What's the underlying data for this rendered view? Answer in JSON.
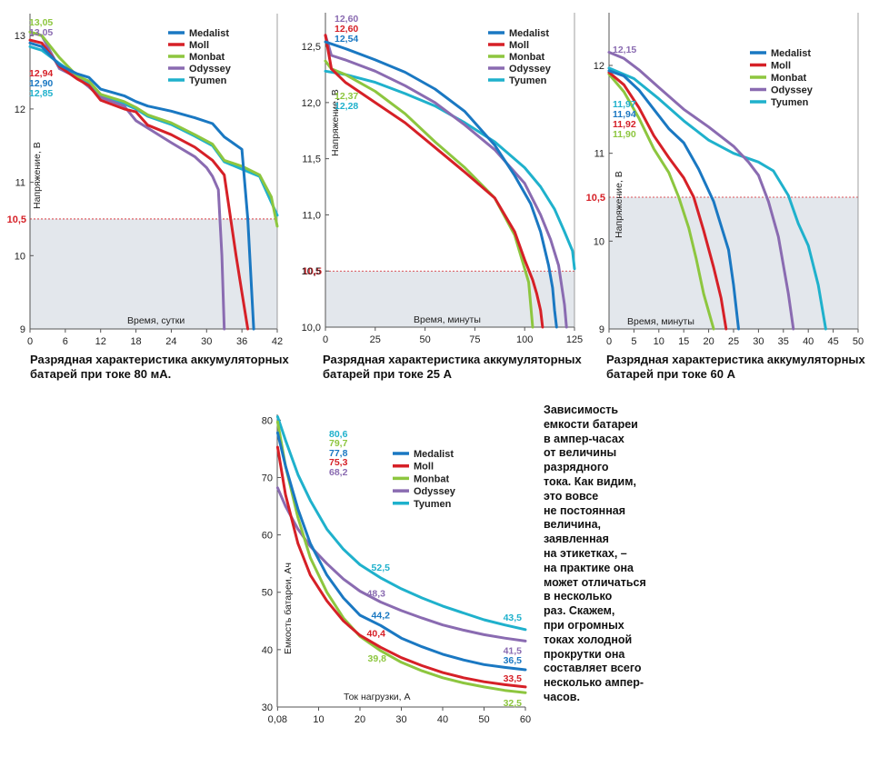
{
  "colors": {
    "Medalist": "#1a78c2",
    "Moll": "#d62027",
    "Monbat": "#8dc63f",
    "Odyssey": "#8a6bb1",
    "Tyumen": "#1fb1cc",
    "threshold_line": "#d62027",
    "shade": "#e3e7ec"
  },
  "captions": [
    "Разрядная характеристика аккумуляторных батарей при токе 80 мА.",
    "Разрядная характеристика аккумуляторных батарей при токе 25 А",
    "Разрядная характеристика аккумуляторных батарей при токе 60 А"
  ],
  "note_lines": [
    "Зависимость",
    "емкости батареи",
    "в ампер-часах",
    "от величины",
    "разрядного",
    "тока. Как видим,",
    "это вовсе",
    "не постоянная",
    "величина,",
    "заявленная",
    "на этикетках, –",
    "на практике она",
    "может отличаться",
    "в несколько",
    "раз. Скажем,",
    "при огромных",
    "токах холодной",
    "прокрутки она",
    "составляет всего",
    "несколько ампер-",
    "часов."
  ],
  "chart_data": [
    {
      "type": "line",
      "caption": "Разрядная характеристика аккумуляторных батарей при токе 80 мА.",
      "xlabel": "Время, сутки",
      "ylabel": "Напряжение, В",
      "xlim": [
        0,
        42
      ],
      "ylim": [
        9,
        13.3
      ],
      "xticks": [
        "0",
        "6",
        "12",
        "18",
        "24",
        "30",
        "36",
        "42"
      ],
      "xtick_values": [
        0,
        6,
        12,
        18,
        24,
        30,
        36,
        42
      ],
      "yticks": [
        "9",
        "10",
        "11",
        "12",
        "13"
      ],
      "ytick_values": [
        9,
        10,
        11,
        12,
        13
      ],
      "threshold": {
        "value": 10.5,
        "label": "10,5"
      },
      "legend": [
        "Medalist",
        "Moll",
        "Monbat",
        "Odyssey",
        "Tyumen"
      ],
      "start_labels": [
        {
          "series": "Monbat",
          "text": "13,05"
        },
        {
          "series": "Odyssey",
          "text": "13,05"
        },
        {
          "series": "Moll",
          "text": "12,94"
        },
        {
          "series": "Medalist",
          "text": "12,90"
        },
        {
          "series": "Tyumen",
          "text": "12,85"
        }
      ],
      "series": [
        {
          "name": "Medalist",
          "x": [
            0,
            2,
            5,
            8,
            10,
            12,
            16,
            18,
            20,
            24,
            28,
            31,
            33,
            36,
            37,
            38
          ],
          "y": [
            12.9,
            12.85,
            12.6,
            12.48,
            12.43,
            12.27,
            12.18,
            12.1,
            12.04,
            11.97,
            11.88,
            11.8,
            11.62,
            11.45,
            10.5,
            9
          ]
        },
        {
          "name": "Moll",
          "x": [
            0,
            2,
            5,
            8,
            10,
            12,
            16,
            18,
            20,
            24,
            28,
            31,
            33,
            35,
            36,
            37
          ],
          "y": [
            12.94,
            12.9,
            12.58,
            12.41,
            12.32,
            12.12,
            12.0,
            11.96,
            11.78,
            11.65,
            11.48,
            11.3,
            11.1,
            10.0,
            9.5,
            9
          ]
        },
        {
          "name": "Monbat",
          "x": [
            0,
            2,
            5,
            8,
            10,
            12,
            16,
            18,
            20,
            24,
            28,
            31,
            33,
            36,
            39,
            41,
            42
          ],
          "y": [
            13.05,
            13.0,
            12.7,
            12.45,
            12.38,
            12.2,
            12.1,
            12.02,
            11.92,
            11.81,
            11.65,
            11.52,
            11.3,
            11.22,
            11.1,
            10.8,
            10.4
          ]
        },
        {
          "name": "Odyssey",
          "x": [
            0,
            2,
            5,
            8,
            10,
            12,
            16,
            18,
            20,
            24,
            28,
            30,
            31,
            32,
            32.6,
            33
          ],
          "y": [
            13.05,
            13.0,
            12.55,
            12.43,
            12.3,
            12.16,
            12.04,
            11.84,
            11.74,
            11.54,
            11.35,
            11.2,
            11.08,
            10.9,
            10.0,
            9
          ]
        },
        {
          "name": "Tyumen",
          "x": [
            0,
            2,
            5,
            8,
            10,
            12,
            16,
            18,
            20,
            24,
            28,
            31,
            33,
            36,
            39,
            42
          ],
          "y": [
            12.85,
            12.8,
            12.62,
            12.45,
            12.36,
            12.18,
            12.07,
            12.0,
            11.9,
            11.79,
            11.63,
            11.5,
            11.28,
            11.18,
            11.08,
            10.55
          ]
        }
      ]
    },
    {
      "type": "line",
      "caption": "Разрядная характеристика аккумуляторных батарей при токе 25 А",
      "xlabel": "Время, минуты",
      "ylabel": "Напряжение, В",
      "xlim": [
        0,
        125
      ],
      "ylim": [
        10,
        12.8
      ],
      "xticks": [
        "0",
        "25",
        "50",
        "75",
        "100",
        "125"
      ],
      "xtick_values": [
        0,
        25,
        50,
        75,
        100,
        125
      ],
      "yticks": [
        "10,0",
        "10,5",
        "11,0",
        "11,5",
        "12,0",
        "12,5"
      ],
      "ytick_values": [
        10,
        10.5,
        11,
        11.5,
        12,
        12.5
      ],
      "threshold": {
        "value": 10.5,
        "label": "10,5"
      },
      "legend": [
        "Medalist",
        "Moll",
        "Monbat",
        "Odyssey",
        "Tyumen"
      ],
      "start_labels": [
        {
          "series": "Odyssey",
          "text": "12,60"
        },
        {
          "series": "Moll",
          "text": "12,60"
        },
        {
          "series": "Medalist",
          "text": "12,54"
        },
        {
          "series": "Monbat",
          "text": "12,37"
        },
        {
          "series": "Tyumen",
          "text": "12,28"
        }
      ],
      "series": [
        {
          "name": "Medalist",
          "x": [
            0,
            10,
            25,
            40,
            55,
            70,
            85,
            95,
            103,
            108,
            112,
            114,
            115,
            116
          ],
          "y": [
            12.54,
            12.48,
            12.38,
            12.27,
            12.12,
            11.92,
            11.62,
            11.35,
            11.1,
            10.85,
            10.55,
            10.35,
            10.15,
            10.0
          ]
        },
        {
          "name": "Moll",
          "x": [
            0,
            3,
            10,
            25,
            40,
            55,
            70,
            85,
            95,
            100,
            104,
            106,
            108,
            109
          ],
          "y": [
            12.6,
            12.3,
            12.18,
            12.0,
            11.82,
            11.6,
            11.38,
            11.15,
            10.85,
            10.6,
            10.42,
            10.3,
            10.15,
            10.0
          ]
        },
        {
          "name": "Monbat",
          "x": [
            0,
            3,
            10,
            25,
            40,
            55,
            70,
            85,
            95,
            100,
            102,
            103,
            104
          ],
          "y": [
            12.37,
            12.3,
            12.25,
            12.1,
            11.9,
            11.65,
            11.42,
            11.15,
            10.82,
            10.52,
            10.4,
            10.2,
            10.0
          ]
        },
        {
          "name": "Odyssey",
          "x": [
            0,
            3,
            10,
            25,
            40,
            55,
            70,
            85,
            100,
            108,
            113,
            117,
            120,
            121
          ],
          "y": [
            12.6,
            12.42,
            12.38,
            12.28,
            12.15,
            12.0,
            11.8,
            11.58,
            11.28,
            11.0,
            10.78,
            10.55,
            10.2,
            10.0
          ]
        },
        {
          "name": "Tyumen",
          "x": [
            0,
            10,
            25,
            40,
            55,
            70,
            85,
            100,
            108,
            115,
            120,
            124,
            125
          ],
          "y": [
            12.28,
            12.25,
            12.18,
            12.08,
            11.97,
            11.82,
            11.65,
            11.42,
            11.25,
            11.05,
            10.85,
            10.68,
            10.52
          ]
        }
      ]
    },
    {
      "type": "line",
      "caption": "Разрядная характеристика аккумуляторных батарей при токе 60 А",
      "xlabel": "Время, минуты",
      "ylabel": "Напряжение, В",
      "xlim": [
        0,
        50
      ],
      "ylim": [
        9,
        12.6
      ],
      "xticks": [
        "0",
        "5",
        "10",
        "15",
        "20",
        "25",
        "30",
        "35",
        "40",
        "45",
        "50"
      ],
      "xtick_values": [
        0,
        5,
        10,
        15,
        20,
        25,
        30,
        35,
        40,
        45,
        50
      ],
      "yticks": [
        "9",
        "10",
        "11",
        "12"
      ],
      "ytick_values": [
        9,
        10,
        11,
        12
      ],
      "threshold": {
        "value": 10.5,
        "label": "10,5"
      },
      "legend": [
        "Medalist",
        "Moll",
        "Monbat",
        "Odyssey",
        "Tyumen"
      ],
      "start_labels": [
        {
          "series": "Odyssey",
          "text": "12,15"
        },
        {
          "series": "Tyumen",
          "text": "11,97"
        },
        {
          "series": "Medalist",
          "text": "11,94"
        },
        {
          "series": "Moll",
          "text": "11,92"
        },
        {
          "series": "Monbat",
          "text": "11,90"
        }
      ],
      "series": [
        {
          "name": "Medalist",
          "x": [
            0,
            3,
            6,
            9,
            12,
            15,
            18,
            21,
            24,
            25,
            26
          ],
          "y": [
            11.94,
            11.88,
            11.72,
            11.5,
            11.28,
            11.12,
            10.82,
            10.45,
            9.9,
            9.5,
            9.0
          ]
        },
        {
          "name": "Moll",
          "x": [
            0,
            3,
            6,
            9,
            12,
            15,
            17,
            19,
            21,
            22.5,
            23.5
          ],
          "y": [
            11.92,
            11.78,
            11.52,
            11.2,
            10.95,
            10.72,
            10.5,
            10.12,
            9.7,
            9.35,
            9.0
          ]
        },
        {
          "name": "Monbat",
          "x": [
            0,
            3,
            6,
            9,
            12,
            14,
            16,
            17.5,
            19,
            20,
            21
          ],
          "y": [
            11.9,
            11.7,
            11.4,
            11.05,
            10.78,
            10.5,
            10.15,
            9.8,
            9.4,
            9.2,
            9.0
          ]
        },
        {
          "name": "Odyssey",
          "x": [
            0,
            3,
            6,
            10,
            15,
            20,
            25,
            28,
            30,
            32,
            34,
            36,
            37
          ],
          "y": [
            12.15,
            12.08,
            11.95,
            11.75,
            11.5,
            11.3,
            11.08,
            10.9,
            10.75,
            10.45,
            10.05,
            9.4,
            9.0
          ]
        },
        {
          "name": "Tyumen",
          "x": [
            0,
            5,
            10,
            15,
            20,
            25,
            30,
            33,
            36,
            38,
            40,
            42,
            43.5
          ],
          "y": [
            11.97,
            11.85,
            11.62,
            11.37,
            11.15,
            11.0,
            10.9,
            10.8,
            10.52,
            10.2,
            9.95,
            9.5,
            9.0
          ]
        }
      ]
    },
    {
      "type": "line",
      "xlabel": "Ток нагрузки, А",
      "ylabel": "Емкость батареи, Ач",
      "xlim": [
        0,
        60
      ],
      "ylim": [
        30,
        81
      ],
      "xticks": [
        "0,08",
        "10",
        "20",
        "30",
        "40",
        "50",
        "60"
      ],
      "xtick_values": [
        0.08,
        10,
        20,
        30,
        40,
        50,
        60
      ],
      "yticks": [
        "30",
        "40",
        "50",
        "60",
        "70",
        "80"
      ],
      "ytick_values": [
        30,
        40,
        50,
        60,
        70,
        80
      ],
      "legend": [
        "Medalist",
        "Moll",
        "Monbat",
        "Odyssey",
        "Tyumen"
      ],
      "start_labels": [
        {
          "series": "Tyumen",
          "text": "80,6"
        },
        {
          "series": "Monbat",
          "text": "79,7"
        },
        {
          "series": "Medalist",
          "text": "77,8"
        },
        {
          "series": "Moll",
          "text": "75,3"
        },
        {
          "series": "Odyssey",
          "text": "68,2"
        }
      ],
      "point_labels": [
        {
          "series": "Tyumen",
          "x": 25,
          "y": 52.5,
          "text": "52,5"
        },
        {
          "series": "Odyssey",
          "x": 25,
          "y": 48.3,
          "text": "48,3"
        },
        {
          "series": "Medalist",
          "x": 25,
          "y": 44.2,
          "text": "44,2"
        },
        {
          "series": "Moll",
          "x": 25,
          "y": 40.4,
          "text": "40,4"
        },
        {
          "series": "Monbat",
          "x": 25,
          "y": 39.8,
          "text": "39,8"
        },
        {
          "series": "Tyumen",
          "x": 60,
          "y": 43.5,
          "text": "43,5"
        },
        {
          "series": "Odyssey",
          "x": 60,
          "y": 41.5,
          "text": "41,5"
        },
        {
          "series": "Medalist",
          "x": 60,
          "y": 36.5,
          "text": "36,5"
        },
        {
          "series": "Moll",
          "x": 60,
          "y": 33.5,
          "text": "33,5"
        },
        {
          "series": "Monbat",
          "x": 60,
          "y": 32.5,
          "text": "32,5"
        }
      ],
      "series": [
        {
          "name": "Medalist",
          "x": [
            0.08,
            2,
            5,
            8,
            12,
            16,
            20,
            25,
            30,
            35,
            40,
            45,
            50,
            55,
            60
          ],
          "y": [
            77.8,
            72.0,
            64.5,
            58.5,
            53.0,
            49.0,
            46.0,
            44.2,
            42.0,
            40.5,
            39.2,
            38.2,
            37.4,
            36.9,
            36.5
          ]
        },
        {
          "name": "Moll",
          "x": [
            0.08,
            2,
            5,
            8,
            12,
            16,
            20,
            25,
            30,
            35,
            40,
            45,
            50,
            55,
            60
          ],
          "y": [
            75.3,
            67.0,
            58.5,
            53.0,
            48.5,
            45.0,
            42.5,
            40.4,
            38.6,
            37.2,
            36.0,
            35.1,
            34.4,
            33.9,
            33.5
          ]
        },
        {
          "name": "Monbat",
          "x": [
            0.08,
            2,
            5,
            8,
            12,
            16,
            20,
            25,
            30,
            35,
            40,
            45,
            50,
            55,
            60
          ],
          "y": [
            79.7,
            72.0,
            63.0,
            56.0,
            50.0,
            45.5,
            42.3,
            39.8,
            37.8,
            36.3,
            35.1,
            34.2,
            33.5,
            32.9,
            32.5
          ]
        },
        {
          "name": "Odyssey",
          "x": [
            0.08,
            2,
            5,
            8,
            12,
            16,
            20,
            25,
            30,
            35,
            40,
            45,
            50,
            55,
            60
          ],
          "y": [
            68.2,
            65.0,
            61.0,
            58.0,
            55.0,
            52.3,
            50.2,
            48.3,
            46.8,
            45.5,
            44.3,
            43.4,
            42.6,
            42.0,
            41.5
          ]
        },
        {
          "name": "Tyumen",
          "x": [
            0.08,
            2,
            5,
            8,
            12,
            16,
            20,
            25,
            30,
            35,
            40,
            45,
            50,
            55,
            60
          ],
          "y": [
            80.6,
            76.5,
            70.5,
            66.0,
            61.0,
            57.5,
            54.8,
            52.5,
            50.6,
            49.0,
            47.6,
            46.4,
            45.2,
            44.3,
            43.5
          ]
        }
      ]
    }
  ]
}
